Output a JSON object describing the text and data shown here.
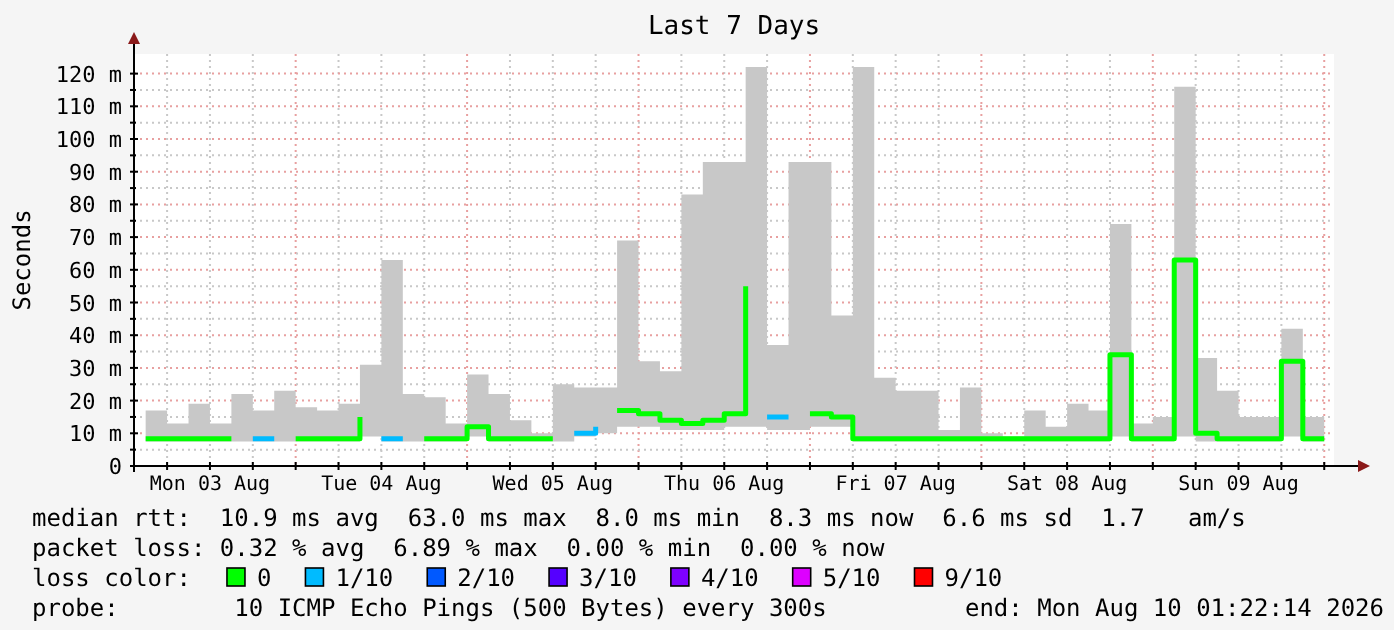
{
  "chart_data": {
    "type": "step",
    "title": "Last 7 Days",
    "ylabel": "Seconds",
    "legend_title": "loss color:",
    "legend": "bottom",
    "grid": true,
    "x": [
      "2026-08-03T03:00",
      "2026-08-03T06:00",
      "2026-08-03T09:00",
      "2026-08-03T12:00",
      "2026-08-03T15:00",
      "2026-08-03T18:00",
      "2026-08-03T21:00",
      "2026-08-04T00:00",
      "2026-08-04T03:00",
      "2026-08-04T06:00",
      "2026-08-04T09:00",
      "2026-08-04T12:00",
      "2026-08-04T15:00",
      "2026-08-04T18:00",
      "2026-08-04T21:00",
      "2026-08-05T00:00",
      "2026-08-05T03:00",
      "2026-08-05T06:00",
      "2026-08-05T09:00",
      "2026-08-05T12:00",
      "2026-08-05T15:00",
      "2026-08-05T18:00",
      "2026-08-05T21:00",
      "2026-08-06T00:00",
      "2026-08-06T03:00",
      "2026-08-06T06:00",
      "2026-08-06T09:00",
      "2026-08-06T12:00",
      "2026-08-06T15:00",
      "2026-08-06T18:00",
      "2026-08-06T21:00",
      "2026-08-07T00:00",
      "2026-08-07T03:00",
      "2026-08-07T06:00",
      "2026-08-07T09:00",
      "2026-08-07T12:00",
      "2026-08-07T15:00",
      "2026-08-07T18:00",
      "2026-08-07T21:00",
      "2026-08-08T00:00",
      "2026-08-08T03:00",
      "2026-08-08T06:00",
      "2026-08-08T09:00",
      "2026-08-08T12:00",
      "2026-08-08T15:00",
      "2026-08-08T18:00",
      "2026-08-08T21:00",
      "2026-08-09T00:00",
      "2026-08-09T03:00",
      "2026-08-09T06:00",
      "2026-08-09T09:00",
      "2026-08-09T12:00",
      "2026-08-09T15:00",
      "2026-08-09T18:00",
      "2026-08-09T21:00",
      "2026-08-10T00:00"
    ],
    "series": [
      {
        "name": "0",
        "color": "#00ff00",
        "values": [
          8.3,
          8.3,
          8.3,
          8.3,
          8.3,
          null,
          null,
          8.3,
          8.3,
          8.3,
          15,
          null,
          null,
          8.3,
          8.3,
          12,
          8.3,
          8.3,
          8.3,
          8.3,
          null,
          null,
          17,
          16,
          14,
          13,
          14,
          16,
          55,
          null,
          null,
          16,
          15,
          8.3,
          8.3,
          8.3,
          8.3,
          8.3,
          8.3,
          8.3,
          8.3,
          8.3,
          8.3,
          8.3,
          8.3,
          34,
          8.3,
          8.3,
          63,
          10,
          8.3,
          8.3,
          8.3,
          32,
          8.3,
          8.3
        ],
        "lower": [
          7.5,
          7.5,
          7.5,
          7.5,
          7.5,
          7.5,
          7.5,
          7.5,
          7.5,
          7.5,
          9,
          7.5,
          7.5,
          7.5,
          7.5,
          9,
          7.5,
          7.5,
          7.5,
          7.5,
          9,
          10,
          12,
          12,
          11,
          11,
          11,
          12,
          12,
          11,
          11,
          12,
          12,
          7.5,
          7.5,
          7.5,
          7.5,
          7.5,
          7.5,
          7.5,
          7.5,
          7.5,
          7.5,
          7.5,
          7.5,
          9,
          7.5,
          7.5,
          9,
          7.5,
          7.5,
          7.5,
          7.5,
          9,
          7.5,
          7.5
        ],
        "upper": [
          17,
          13,
          19,
          13,
          22,
          17,
          23,
          18,
          17,
          19,
          31,
          63,
          22,
          21,
          13,
          28,
          22,
          14,
          10,
          25,
          24,
          24,
          69,
          32,
          29,
          83,
          93,
          93,
          122,
          37,
          93,
          93,
          46,
          122,
          27,
          23,
          23,
          11,
          24,
          10,
          9,
          17,
          12,
          19,
          17,
          74,
          13,
          15,
          116,
          33,
          23,
          15,
          15,
          42,
          15,
          11
        ]
      },
      {
        "name": "1/10",
        "color": "#00bbff",
        "values": [
          null,
          null,
          null,
          null,
          null,
          8.3,
          8.3,
          null,
          null,
          null,
          null,
          8.3,
          8.3,
          null,
          null,
          null,
          null,
          null,
          null,
          null,
          10,
          12,
          null,
          null,
          null,
          null,
          null,
          null,
          null,
          15,
          15,
          null,
          null,
          null,
          null,
          null,
          null,
          null,
          null,
          null,
          null,
          null,
          null,
          null,
          null,
          null,
          null,
          null,
          null,
          null,
          null,
          null,
          null,
          null,
          null,
          null
        ]
      },
      {
        "name": "2/10",
        "color": "#0059ff",
        "values": [
          null,
          null,
          null,
          null,
          null,
          null,
          null,
          null,
          null,
          null,
          null,
          null,
          null,
          null,
          null,
          null,
          null,
          null,
          null,
          null,
          null,
          null,
          null,
          null,
          null,
          null,
          null,
          null,
          null,
          null,
          null,
          null,
          null,
          null,
          null,
          null,
          null,
          null,
          null,
          null,
          null,
          null,
          null,
          null,
          null,
          null,
          null,
          null,
          null,
          null,
          null,
          null,
          null,
          null,
          null,
          null
        ]
      },
      {
        "name": "3/10",
        "color": "#5500ff",
        "values": [
          null,
          null,
          null,
          null,
          null,
          null,
          null,
          null,
          null,
          null,
          null,
          null,
          null,
          null,
          null,
          null,
          null,
          null,
          null,
          null,
          null,
          null,
          null,
          null,
          null,
          null,
          null,
          null,
          null,
          null,
          null,
          null,
          null,
          null,
          null,
          null,
          null,
          null,
          null,
          null,
          null,
          null,
          null,
          null,
          null,
          null,
          null,
          null,
          null,
          null,
          null,
          null,
          null,
          null,
          null,
          null
        ]
      },
      {
        "name": "4/10",
        "color": "#7e00ff",
        "values": [
          null,
          null,
          null,
          null,
          null,
          null,
          null,
          null,
          null,
          null,
          null,
          null,
          null,
          null,
          null,
          null,
          null,
          null,
          null,
          null,
          null,
          null,
          null,
          null,
          null,
          null,
          null,
          null,
          null,
          null,
          null,
          null,
          null,
          null,
          null,
          null,
          null,
          null,
          null,
          null,
          null,
          null,
          null,
          null,
          null,
          null,
          null,
          null,
          null,
          null,
          null,
          null,
          null,
          null,
          null,
          null
        ]
      },
      {
        "name": "5/10",
        "color": "#dd00ff",
        "values": [
          null,
          null,
          null,
          null,
          null,
          null,
          null,
          null,
          null,
          null,
          null,
          null,
          null,
          null,
          null,
          null,
          null,
          null,
          null,
          null,
          null,
          null,
          null,
          null,
          null,
          null,
          null,
          null,
          null,
          null,
          null,
          null,
          null,
          null,
          null,
          null,
          null,
          null,
          null,
          null,
          null,
          null,
          null,
          null,
          null,
          null,
          null,
          null,
          null,
          null,
          null,
          null,
          null,
          null,
          null,
          null
        ]
      },
      {
        "name": "9/10",
        "color": "#ff0000",
        "values": [
          null,
          null,
          null,
          null,
          null,
          null,
          null,
          null,
          null,
          null,
          null,
          null,
          null,
          null,
          null,
          null,
          null,
          null,
          null,
          null,
          null,
          null,
          null,
          null,
          null,
          null,
          null,
          null,
          null,
          null,
          null,
          null,
          null,
          null,
          null,
          null,
          null,
          null,
          null,
          null,
          null,
          null,
          null,
          null,
          null,
          null,
          null,
          null,
          null,
          null,
          null,
          null,
          null,
          null,
          null,
          null
        ]
      }
    ],
    "xlim": [
      "2026-08-03T01:22",
      "2026-08-10T01:22"
    ],
    "xticks": [
      {
        "value": "2026-08-03T06:00",
        "label": null
      },
      {
        "value": "2026-08-03T12:00",
        "label": "Mon 03 Aug"
      },
      {
        "value": "2026-08-03T18:00",
        "label": null
      },
      {
        "value": "2026-08-04T00:00",
        "label": null
      },
      {
        "value": "2026-08-04T06:00",
        "label": null
      },
      {
        "value": "2026-08-04T12:00",
        "label": "Tue 04 Aug"
      },
      {
        "value": "2026-08-04T18:00",
        "label": null
      },
      {
        "value": "2026-08-05T00:00",
        "label": null
      },
      {
        "value": "2026-08-05T06:00",
        "label": null
      },
      {
        "value": "2026-08-05T12:00",
        "label": "Wed 05 Aug"
      },
      {
        "value": "2026-08-05T18:00",
        "label": null
      },
      {
        "value": "2026-08-06T00:00",
        "label": null
      },
      {
        "value": "2026-08-06T06:00",
        "label": null
      },
      {
        "value": "2026-08-06T12:00",
        "label": "Thu 06 Aug"
      },
      {
        "value": "2026-08-06T18:00",
        "label": null
      },
      {
        "value": "2026-08-07T00:00",
        "label": null
      },
      {
        "value": "2026-08-07T06:00",
        "label": null
      },
      {
        "value": "2026-08-07T12:00",
        "label": "Fri 07 Aug"
      },
      {
        "value": "2026-08-07T18:00",
        "label": null
      },
      {
        "value": "2026-08-08T00:00",
        "label": null
      },
      {
        "value": "2026-08-08T06:00",
        "label": null
      },
      {
        "value": "2026-08-08T12:00",
        "label": "Sat 08 Aug"
      },
      {
        "value": "2026-08-08T18:00",
        "label": null
      },
      {
        "value": "2026-08-09T00:00",
        "label": null
      },
      {
        "value": "2026-08-09T06:00",
        "label": null
      },
      {
        "value": "2026-08-09T12:00",
        "label": "Sun 09 Aug"
      },
      {
        "value": "2026-08-09T18:00",
        "label": null
      },
      {
        "value": "2026-08-10T00:00",
        "label": null
      }
    ],
    "ylim": [
      0,
      126
    ],
    "yticks": [
      0,
      {
        "value": 5,
        "label": null
      },
      {
        "value": 10,
        "label": "10 m"
      },
      {
        "value": 15,
        "label": null
      },
      {
        "value": 20,
        "label": "20 m"
      },
      {
        "value": 25,
        "label": null
      },
      {
        "value": 30,
        "label": "30 m"
      },
      {
        "value": 35,
        "label": null
      },
      {
        "value": 40,
        "label": "40 m"
      },
      {
        "value": 45,
        "label": null
      },
      {
        "value": 50,
        "label": "50 m"
      },
      {
        "value": 55,
        "label": null
      },
      {
        "value": 60,
        "label": "60 m"
      },
      {
        "value": 65,
        "label": null
      },
      {
        "value": 70,
        "label": "70 m"
      },
      {
        "value": 75,
        "label": null
      },
      {
        "value": 80,
        "label": "80 m"
      },
      {
        "value": 85,
        "label": null
      },
      {
        "value": 90,
        "label": "90 m"
      },
      {
        "value": 95,
        "label": null
      },
      {
        "value": 100,
        "label": "100 m"
      },
      {
        "value": 105,
        "label": null
      },
      {
        "value": 110,
        "label": "110 m"
      },
      {
        "value": 115,
        "label": null
      },
      {
        "value": 120,
        "label": "120 m"
      }
    ],
    "annotations": [
      "median rtt:  10.9 ms avg  63.0 ms max  8.0 ms min  8.3 ms now  6.6 ms sd  1.7   am/s",
      "packet loss: 0.32 % avg  6.89 % max  0.00 % min  0.00 % now",
      "probe:        10 ICMP Echo Pings (500 Bytes) every 300s",
      "end: Mon Aug 10 01:22:14 2026"
    ]
  }
}
